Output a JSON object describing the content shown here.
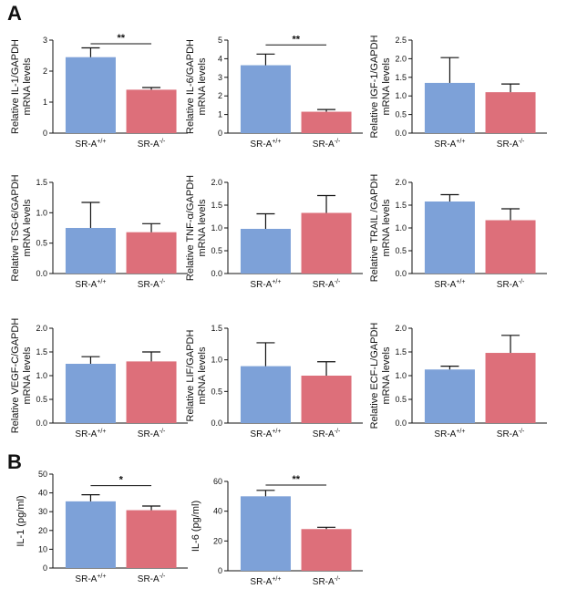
{
  "panels": [
    {
      "label": "A"
    },
    {
      "label": "B"
    }
  ],
  "colors": {
    "wt": "#7da1d8",
    "ko": "#dd6f7a",
    "axis": "#111111"
  },
  "chart_data": [
    {
      "type": "bar",
      "panel": "A",
      "ylabel_lines": [
        "Relative  IL-1/GAPDH",
        "mRNA levels"
      ],
      "categories": [
        {
          "base": "SR-A",
          "sup": "+/+"
        },
        {
          "base": "SR-A",
          "sup": "-/-"
        }
      ],
      "values": [
        2.45,
        1.4
      ],
      "errors": [
        0.3,
        0.07
      ],
      "yticks": [
        0,
        1,
        2,
        3
      ],
      "ylim": [
        0,
        3
      ],
      "significance": "**"
    },
    {
      "type": "bar",
      "panel": "A",
      "ylabel_lines": [
        "Relative  IL-6/GAPDH",
        "mRNA levels"
      ],
      "categories": [
        {
          "base": "SR-A",
          "sup": "+/+"
        },
        {
          "base": "SR-A",
          "sup": "-/-"
        }
      ],
      "values": [
        3.65,
        1.15
      ],
      "errors": [
        0.6,
        0.12
      ],
      "yticks": [
        0,
        1,
        2,
        3,
        4,
        5
      ],
      "ylim": [
        0,
        5
      ],
      "significance": "**"
    },
    {
      "type": "bar",
      "panel": "A",
      "ylabel_lines": [
        "Relative  IGF-1/GAPDH",
        "mRNA levels"
      ],
      "categories": [
        {
          "base": "SR-A",
          "sup": "+/+"
        },
        {
          "base": "SR-A",
          "sup": "-/-"
        }
      ],
      "values": [
        1.35,
        1.1
      ],
      "errors": [
        0.68,
        0.22
      ],
      "yticks": [
        0.0,
        0.5,
        1.0,
        1.5,
        2.0,
        2.5
      ],
      "ylim": [
        0,
        2.5
      ],
      "significance": ""
    },
    {
      "type": "bar",
      "panel": "A",
      "ylabel_lines": [
        "Relative  TSG-6/GAPDH",
        "mRNA levels"
      ],
      "categories": [
        {
          "base": "SR-A",
          "sup": "+/+"
        },
        {
          "base": "SR-A",
          "sup": "-/-"
        }
      ],
      "values": [
        0.75,
        0.68
      ],
      "errors": [
        0.42,
        0.14
      ],
      "yticks": [
        0.0,
        0.5,
        1.0,
        1.5
      ],
      "ylim": [
        0,
        1.5
      ],
      "significance": ""
    },
    {
      "type": "bar",
      "panel": "A",
      "ylabel_lines": [
        "Relative  TNF-α/GAPDH",
        "mRNA levels"
      ],
      "categories": [
        {
          "base": "SR-A",
          "sup": "+/+"
        },
        {
          "base": "SR-A",
          "sup": "-/-"
        }
      ],
      "values": [
        0.98,
        1.33
      ],
      "errors": [
        0.33,
        0.38
      ],
      "yticks": [
        0.0,
        0.5,
        1.0,
        1.5,
        2.0
      ],
      "ylim": [
        0,
        2.0
      ],
      "significance": ""
    },
    {
      "type": "bar",
      "panel": "A",
      "ylabel_lines": [
        "Relative  TRAIL /GAPDH",
        "mRNA levels"
      ],
      "categories": [
        {
          "base": "SR-A",
          "sup": "+/+"
        },
        {
          "base": "SR-A",
          "sup": "-/-"
        }
      ],
      "values": [
        1.58,
        1.17
      ],
      "errors": [
        0.15,
        0.25
      ],
      "yticks": [
        0.0,
        0.5,
        1.0,
        1.5,
        2.0
      ],
      "ylim": [
        0,
        2.0
      ],
      "significance": ""
    },
    {
      "type": "bar",
      "panel": "A",
      "ylabel_lines": [
        "Relative  VEGF-C/GAPDH",
        "mRNA levels"
      ],
      "categories": [
        {
          "base": "SR-A",
          "sup": "+/+"
        },
        {
          "base": "SR-A",
          "sup": "-/-"
        }
      ],
      "values": [
        1.25,
        1.3
      ],
      "errors": [
        0.15,
        0.2
      ],
      "yticks": [
        0.0,
        0.5,
        1.0,
        1.5,
        2.0
      ],
      "ylim": [
        0,
        2.0
      ],
      "significance": ""
    },
    {
      "type": "bar",
      "panel": "A",
      "ylabel_lines": [
        "Relative  LIF/GAPDH",
        "mRNA levels"
      ],
      "categories": [
        {
          "base": "SR-A",
          "sup": "+/+"
        },
        {
          "base": "SR-A",
          "sup": "-/-"
        }
      ],
      "values": [
        0.9,
        0.75
      ],
      "errors": [
        0.37,
        0.22
      ],
      "yticks": [
        0.0,
        0.5,
        1.0,
        1.5
      ],
      "ylim": [
        0,
        1.5
      ],
      "significance": ""
    },
    {
      "type": "bar",
      "panel": "A",
      "ylabel_lines": [
        "Relative  ECF-L/GAPDH",
        "mRNA levels"
      ],
      "categories": [
        {
          "base": "SR-A",
          "sup": "+/+"
        },
        {
          "base": "SR-A",
          "sup": "-/-"
        }
      ],
      "values": [
        1.13,
        1.48
      ],
      "errors": [
        0.07,
        0.37
      ],
      "yticks": [
        0.0,
        0.5,
        1.0,
        1.5,
        2.0
      ],
      "ylim": [
        0,
        2.0
      ],
      "significance": ""
    },
    {
      "type": "bar",
      "panel": "B",
      "ylabel_lines": [
        "IL-1 (pg/ml)"
      ],
      "categories": [
        {
          "base": "SR-A",
          "sup": "+/+"
        },
        {
          "base": "SR-A",
          "sup": "-/-"
        }
      ],
      "values": [
        35.5,
        30.8
      ],
      "errors": [
        3.5,
        2.2
      ],
      "yticks": [
        0,
        10,
        20,
        30,
        40,
        50
      ],
      "ylim": [
        0,
        50
      ],
      "significance": "*"
    },
    {
      "type": "bar",
      "panel": "B",
      "ylabel_lines": [
        "IL-6 (pg/ml)"
      ],
      "categories": [
        {
          "base": "SR-A",
          "sup": "+/+"
        },
        {
          "base": "SR-A",
          "sup": "-/-"
        }
      ],
      "values": [
        50,
        28
      ],
      "errors": [
        4,
        1.2
      ],
      "yticks": [
        0,
        20,
        40,
        60
      ],
      "ylim": [
        0,
        60
      ],
      "significance": "**"
    }
  ]
}
